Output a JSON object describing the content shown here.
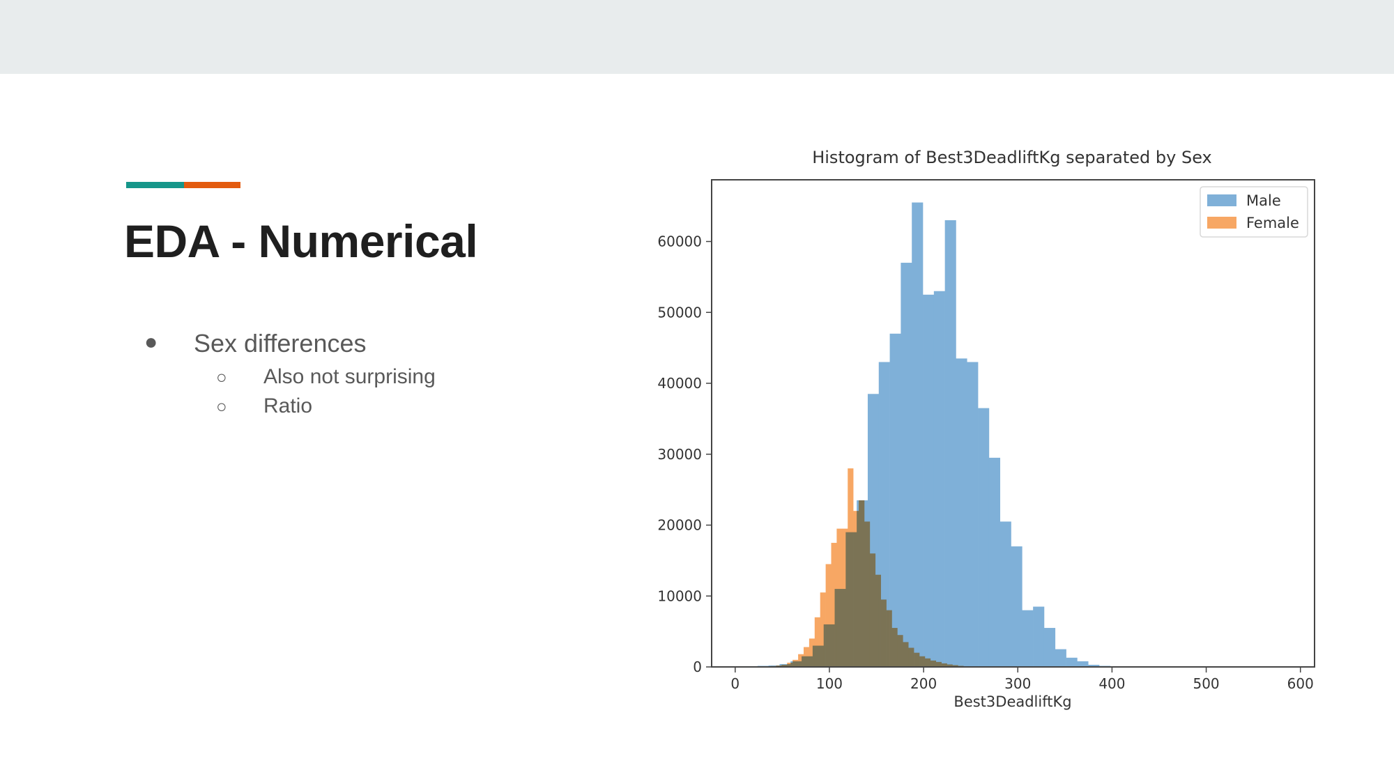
{
  "slide": {
    "title": "EDA - Numerical",
    "bullets": [
      {
        "text": "Sex differences",
        "children": [
          {
            "text": "Also not surprising"
          },
          {
            "text": "Ratio"
          }
        ]
      }
    ],
    "bullet_glyph_l1": "●",
    "bullet_glyph_l2": "○"
  },
  "colors": {
    "topbar": "#e8eced",
    "accent_teal": "#16968a",
    "accent_orange": "#e35b0f",
    "male": "#7fb0d8",
    "female": "#f7a764",
    "overlap": "#b09472"
  },
  "chart_data": {
    "type": "bar",
    "title": "Histogram of Best3DeadliftKg separated by Sex",
    "xlabel": "Best3DeadliftKg",
    "ylabel": "",
    "xlim": [
      -25,
      615
    ],
    "ylim": [
      0,
      68700
    ],
    "xticks": [
      0,
      100,
      200,
      300,
      400,
      500,
      600
    ],
    "yticks": [
      0,
      10000,
      20000,
      30000,
      40000,
      50000,
      60000
    ],
    "legend": "top-right",
    "grid": false,
    "series": [
      {
        "name": "Male",
        "color": "#7fb0d8",
        "bin_edges": [
          12,
          23.7,
          35.4,
          47.1,
          58.8,
          70.5,
          82.2,
          93.9,
          105.6,
          117.3,
          129,
          140.7,
          152.4,
          164.1,
          175.8,
          187.5,
          199.2,
          210.9,
          222.6,
          234.3,
          246,
          257.7,
          269.4,
          281.1,
          292.8,
          304.5,
          316.2,
          327.9,
          339.6,
          351.3,
          363,
          374.7,
          386.4,
          398.1,
          409.8
        ],
        "counts": [
          100,
          150,
          200,
          400,
          800,
          1500,
          3000,
          6000,
          11000,
          19000,
          23500,
          38500,
          43000,
          47000,
          57000,
          65500,
          52500,
          53000,
          63000,
          43500,
          43000,
          36500,
          29500,
          20500,
          17000,
          8000,
          8500,
          5500,
          2500,
          1300,
          800,
          300,
          150,
          50
        ]
      },
      {
        "name": "Female",
        "color": "#f7a764",
        "bin_edges": [
          20,
          25.85,
          31.7,
          37.55,
          43.4,
          49.25,
          55.1,
          60.95,
          66.8,
          72.65,
          78.5,
          84.35,
          90.2,
          96.05,
          101.9,
          107.75,
          113.6,
          119.45,
          125.3,
          131.15,
          137,
          142.85,
          148.7,
          154.55,
          160.4,
          166.25,
          172.1,
          177.95,
          183.8,
          189.65,
          195.5,
          201.35,
          207.2,
          213.05,
          218.9,
          224.75,
          230.6,
          236.45,
          242.3,
          248.15,
          254
        ],
        "counts": [
          30,
          50,
          80,
          120,
          200,
          300,
          600,
          1000,
          1800,
          2800,
          4000,
          7000,
          10500,
          14500,
          17500,
          19500,
          19500,
          28000,
          22000,
          23500,
          20500,
          16000,
          13000,
          9500,
          8000,
          5500,
          4500,
          3500,
          2700,
          2000,
          1500,
          1200,
          900,
          700,
          500,
          350,
          250,
          150,
          100,
          50
        ]
      }
    ]
  }
}
